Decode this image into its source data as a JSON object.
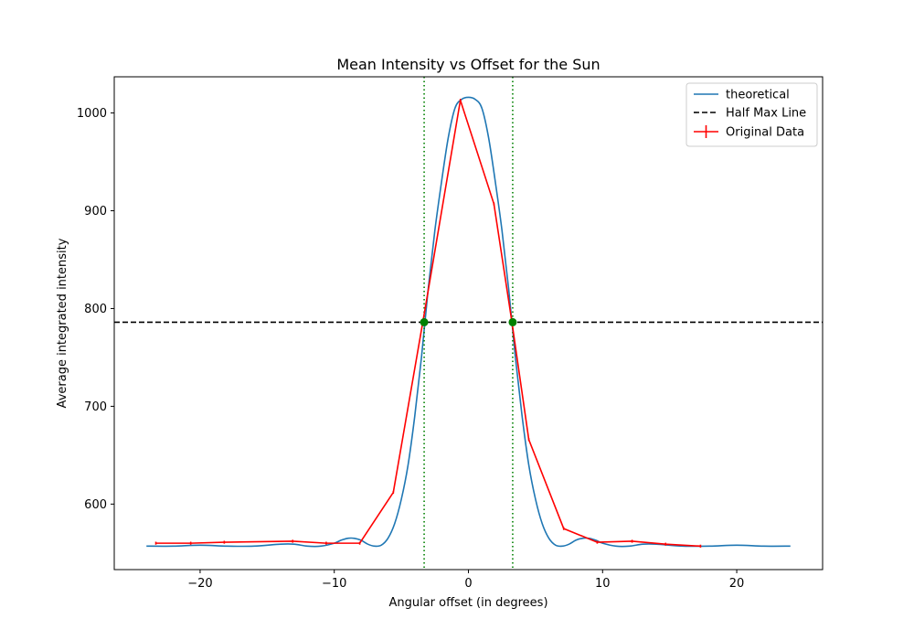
{
  "chart_data": {
    "type": "line",
    "title": "Mean Intensity vs Offset for the Sun",
    "xlabel": "Angular offset (in degrees)",
    "ylabel": "Average integrated intensity",
    "xlim": [
      -26.4,
      26.4
    ],
    "ylim": [
      533,
      1037
    ],
    "xticks": [
      {
        "value": -20,
        "label": "−20"
      },
      {
        "value": -10,
        "label": "−10"
      },
      {
        "value": 0,
        "label": "0"
      },
      {
        "value": 10,
        "label": "10"
      },
      {
        "value": 20,
        "label": "20"
      }
    ],
    "yticks": [
      {
        "value": 600,
        "label": "600"
      },
      {
        "value": 700,
        "label": "700"
      },
      {
        "value": 800,
        "label": "800"
      },
      {
        "value": 900,
        "label": "900"
      },
      {
        "value": 1000,
        "label": "1000"
      }
    ],
    "grid": false,
    "legend_position": "top-right",
    "series": [
      {
        "name": "theoretical",
        "kind": "line",
        "color": "#1f77b4",
        "x": [
          -24,
          -22,
          -20,
          -18,
          -16,
          -14,
          -13,
          -12,
          -11,
          -10,
          -9.5,
          -9,
          -8.5,
          -8,
          -7.5,
          -7,
          -6.5,
          -6,
          -5.5,
          -5,
          -4.5,
          -4,
          -3.5,
          -3,
          -2.5,
          -2,
          -1.5,
          -1,
          -0.5,
          0,
          0.5,
          1,
          1.5,
          2,
          2.5,
          3,
          3.5,
          4,
          4.5,
          5,
          5.5,
          6,
          6.5,
          7,
          7.5,
          8,
          8.5,
          9,
          9.5,
          10,
          11,
          12,
          13,
          14,
          16,
          18,
          20,
          22,
          24
        ],
        "y": [
          557,
          557,
          558,
          557,
          557,
          559,
          559,
          557,
          557,
          560,
          563,
          565,
          565,
          563,
          559,
          557,
          558,
          565,
          580,
          605,
          640,
          690,
          750,
          820,
          880,
          930,
          975,
          1005,
          1014,
          1016,
          1014,
          1005,
          975,
          930,
          880,
          820,
          750,
          690,
          640,
          605,
          580,
          565,
          558,
          557,
          559,
          563,
          565,
          565,
          563,
          560,
          557,
          557,
          559,
          559,
          557,
          557,
          558,
          557,
          557
        ]
      },
      {
        "name": "Half Max Line",
        "kind": "hline",
        "color": "#000000",
        "y": 786
      },
      {
        "name": "Original Data",
        "kind": "errorline",
        "color": "#ff0000",
        "x": [
          -23.3,
          -20.7,
          -18.2,
          -13.1,
          -10.6,
          -8.1,
          -5.6,
          -3.2,
          -0.6,
          1.9,
          3.2,
          4.5,
          7.1,
          9.6,
          12.2,
          14.7,
          17.3
        ],
        "y": [
          560,
          560,
          561,
          562,
          560,
          560,
          612,
          802,
          1013,
          907,
          790,
          666,
          575,
          561,
          562,
          559,
          557
        ],
        "yerr": [
          1.5,
          1.5,
          1.5,
          1.5,
          1.5,
          1.5,
          1.5,
          1.5,
          1.5,
          1.5,
          1.5,
          1.5,
          1.5,
          1.5,
          1.5,
          1.5,
          1.5
        ]
      }
    ],
    "vlines": [
      {
        "x": -3.3,
        "color": "#008000",
        "style": "dotted"
      },
      {
        "x": 3.3,
        "color": "#008000",
        "style": "dotted"
      }
    ],
    "markers": [
      {
        "x": -3.3,
        "y": 786,
        "color": "#008000"
      },
      {
        "x": 3.3,
        "y": 786,
        "color": "#008000"
      }
    ]
  }
}
